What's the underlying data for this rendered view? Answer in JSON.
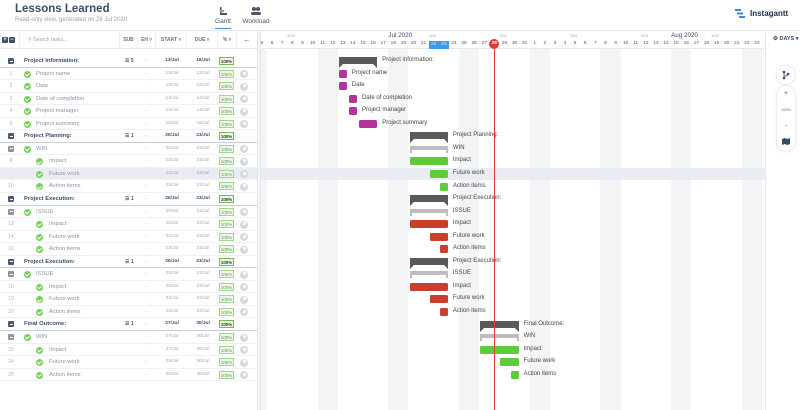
{
  "header": {
    "title": "Lessons Learned",
    "subtitle": "Read-only view, generated on 28 Jul 2020",
    "tabs": [
      {
        "label": "Gantt",
        "icon": "gantt-icon",
        "active": true
      },
      {
        "label": "Workload",
        "icon": "people-icon",
        "active": false
      }
    ],
    "brand": "Instagantt"
  },
  "grid": {
    "search_placeholder": "Search tasks...",
    "columns": {
      "sub": "SUB",
      "eh": "EH ▿",
      "start": "START ▿",
      "due": "DUE ▿",
      "pct": "% ▿",
      "back": "←"
    },
    "rows": [
      {
        "num": "",
        "type": "group",
        "name": "Project information:",
        "sub": "☰ 5",
        "eh": "-",
        "start": "13/Jul",
        "due": "16/Jul",
        "pct": "100%"
      },
      {
        "num": "1",
        "type": "task",
        "level": 1,
        "name": "Project name",
        "eh": "-",
        "start": "13/Jul",
        "due": "13/Jul",
        "pct": "100%"
      },
      {
        "num": "2",
        "type": "task",
        "level": 1,
        "name": "Date",
        "eh": "-",
        "start": "13/Jul",
        "due": "13/Jul",
        "pct": "100%"
      },
      {
        "num": "3",
        "type": "task",
        "level": 1,
        "name": "Date of completion",
        "eh": "-",
        "start": "14/Jul",
        "due": "14/Jul",
        "pct": "100%"
      },
      {
        "num": "4",
        "type": "task",
        "level": 1,
        "name": "Project manager",
        "eh": "-",
        "start": "14/Jul",
        "due": "14/Jul",
        "pct": "100%"
      },
      {
        "num": "5",
        "type": "task",
        "level": 1,
        "name": "Project summary",
        "eh": "-",
        "start": "15/Jul",
        "due": "16/Jul",
        "pct": "100%"
      },
      {
        "num": "",
        "type": "group",
        "name": "Project Planning:",
        "sub": "☰ 1",
        "eh": "-",
        "start": "20/Jul",
        "due": "23/Jul",
        "pct": "100%"
      },
      {
        "num": "",
        "type": "sub",
        "level": 1,
        "name": "WIN",
        "eh": "-",
        "start": "20/Jul",
        "due": "23/Jul",
        "pct": "100%"
      },
      {
        "num": "8",
        "type": "task",
        "level": 2,
        "name": "Impact",
        "eh": "-",
        "start": "20/Jul",
        "due": "23/Jul",
        "pct": "100%"
      },
      {
        "num": "",
        "type": "task",
        "level": 2,
        "name": "Future work",
        "eh": "-",
        "start": "22/Jul",
        "due": "23/Jul",
        "pct": "100%",
        "highlight": true
      },
      {
        "num": "10",
        "type": "task",
        "level": 2,
        "name": "Action items",
        "eh": "-",
        "start": "23/Jul",
        "due": "23/Jul",
        "pct": "100%"
      },
      {
        "num": "",
        "type": "group",
        "name": "Project Execution:",
        "sub": "☰ 1",
        "eh": "-",
        "start": "20/Jul",
        "due": "23/Jul",
        "pct": "100%"
      },
      {
        "num": "",
        "type": "sub",
        "level": 1,
        "name": "ISSUE",
        "eh": "-",
        "start": "20/Jul",
        "due": "23/Jul",
        "pct": "100%"
      },
      {
        "num": "13",
        "type": "task",
        "level": 2,
        "name": "Impact",
        "eh": "-",
        "start": "20/Jul",
        "due": "23/Jul",
        "pct": "100%"
      },
      {
        "num": "14",
        "type": "task",
        "level": 2,
        "name": "Future work",
        "eh": "-",
        "start": "22/Jul",
        "due": "23/Jul",
        "pct": "100%"
      },
      {
        "num": "15",
        "type": "task",
        "level": 2,
        "name": "Action items",
        "eh": "-",
        "start": "23/Jul",
        "due": "23/Jul",
        "pct": "100%"
      },
      {
        "num": "",
        "type": "group",
        "name": "Project Execution:",
        "sub": "☰ 1",
        "eh": "-",
        "start": "20/Jul",
        "due": "23/Jul",
        "pct": "100%"
      },
      {
        "num": "",
        "type": "sub",
        "level": 1,
        "name": "ISSUE",
        "eh": "-",
        "start": "20/Jul",
        "due": "23/Jul",
        "pct": "100%"
      },
      {
        "num": "18",
        "type": "task",
        "level": 2,
        "name": "Impact",
        "eh": "-",
        "start": "20/Jul",
        "due": "23/Jul",
        "pct": "100%"
      },
      {
        "num": "19",
        "type": "task",
        "level": 2,
        "name": "Future work",
        "eh": "-",
        "start": "22/Jul",
        "due": "23/Jul",
        "pct": "100%"
      },
      {
        "num": "20",
        "type": "task",
        "level": 2,
        "name": "Action items",
        "eh": "-",
        "start": "23/Jul",
        "due": "23/Jul",
        "pct": "100%"
      },
      {
        "num": "",
        "type": "group",
        "name": "Final Outcome:",
        "sub": "☰ 1",
        "eh": "-",
        "start": "27/Jul",
        "due": "30/Jul",
        "pct": "100%"
      },
      {
        "num": "",
        "type": "sub",
        "level": 1,
        "name": "WIN",
        "eh": "-",
        "start": "27/Jul",
        "due": "30/Jul",
        "pct": "100%"
      },
      {
        "num": "23",
        "type": "task",
        "level": 2,
        "name": "Impact",
        "eh": "-",
        "start": "27/Jul",
        "due": "30/Jul",
        "pct": "100%"
      },
      {
        "num": "24",
        "type": "task",
        "level": 2,
        "name": "Future work",
        "eh": "-",
        "start": "29/Jul",
        "due": "30/Jul",
        "pct": "100%"
      },
      {
        "num": "25",
        "type": "task",
        "level": 2,
        "name": "Action items",
        "eh": "-",
        "start": "30/Jul",
        "due": "30/Jul",
        "pct": "100%"
      }
    ]
  },
  "timeline": {
    "months": [
      {
        "label": "Jul 2020",
        "day_index": 13
      },
      {
        "label": "Aug 2020",
        "day_index": 41
      }
    ],
    "weeks": [
      {
        "label": "W28",
        "day_index": 3
      },
      {
        "label": "W30",
        "day_index": 17
      },
      {
        "label": "W31",
        "day_index": 24
      },
      {
        "label": "W32",
        "day_index": 31
      },
      {
        "label": "W33",
        "day_index": 38
      },
      {
        "label": "W34",
        "day_index": 45
      }
    ],
    "days": [
      "5",
      "6",
      "7",
      "8",
      "9",
      "10",
      "11",
      "12",
      "13",
      "14",
      "15",
      "16",
      "17",
      "18",
      "19",
      "20",
      "21",
      "22",
      "23",
      "24",
      "25",
      "26",
      "27",
      "28",
      "29",
      "30",
      "31",
      "1",
      "2",
      "3",
      "4",
      "5",
      "6",
      "7",
      "8",
      "9",
      "10",
      "11",
      "12",
      "13",
      "14",
      "15",
      "16",
      "17",
      "18",
      "19",
      "20",
      "21",
      "22",
      "23",
      "24"
    ],
    "selected_days": [
      17,
      18
    ],
    "today_index": 23,
    "today_label": "28",
    "colors": {
      "info": "#b5339c",
      "planning": "#5ecb3b",
      "execution": "#cc3d2a",
      "outcome": "#5ecb3b",
      "today": "#e03a32"
    },
    "bars": [
      {
        "row": 0,
        "type": "group",
        "start": 8,
        "end": 11,
        "label": "Project information:"
      },
      {
        "row": 1,
        "type": "task",
        "start": 8,
        "end": 8,
        "color": "info",
        "label": "Project name"
      },
      {
        "row": 2,
        "type": "task",
        "start": 8,
        "end": 8,
        "color": "info",
        "label": "Date"
      },
      {
        "row": 3,
        "type": "task",
        "start": 9,
        "end": 9,
        "color": "info",
        "label": "Date of completion"
      },
      {
        "row": 4,
        "type": "task",
        "start": 9,
        "end": 9,
        "color": "info",
        "label": "Project manager"
      },
      {
        "row": 5,
        "type": "task",
        "start": 10,
        "end": 11,
        "color": "info",
        "label": "Project summary"
      },
      {
        "row": 6,
        "type": "group",
        "start": 15,
        "end": 18,
        "label": "Project Planning:"
      },
      {
        "row": 7,
        "type": "sub",
        "start": 15,
        "end": 18,
        "label": "WIN"
      },
      {
        "row": 8,
        "type": "task",
        "start": 15,
        "end": 18,
        "color": "planning",
        "label": "Impact"
      },
      {
        "row": 9,
        "type": "task",
        "start": 17,
        "end": 18,
        "color": "planning",
        "label": "Future work"
      },
      {
        "row": 10,
        "type": "task",
        "start": 18,
        "end": 18,
        "color": "planning",
        "label": "Action items"
      },
      {
        "row": 11,
        "type": "group",
        "start": 15,
        "end": 18,
        "label": "Project Execution:"
      },
      {
        "row": 12,
        "type": "sub",
        "start": 15,
        "end": 18,
        "label": "ISSUE"
      },
      {
        "row": 13,
        "type": "task",
        "start": 15,
        "end": 18,
        "color": "execution",
        "label": "Impact"
      },
      {
        "row": 14,
        "type": "task",
        "start": 17,
        "end": 18,
        "color": "execution",
        "label": "Future work"
      },
      {
        "row": 15,
        "type": "task",
        "start": 18,
        "end": 18,
        "color": "execution",
        "label": "Action items"
      },
      {
        "row": 16,
        "type": "group",
        "start": 15,
        "end": 18,
        "label": "Project Execution:"
      },
      {
        "row": 17,
        "type": "sub",
        "start": 15,
        "end": 18,
        "label": "ISSUE"
      },
      {
        "row": 18,
        "type": "task",
        "start": 15,
        "end": 18,
        "color": "execution",
        "label": "Impact"
      },
      {
        "row": 19,
        "type": "task",
        "start": 17,
        "end": 18,
        "color": "execution",
        "label": "Future work"
      },
      {
        "row": 20,
        "type": "task",
        "start": 18,
        "end": 18,
        "color": "execution",
        "label": "Action items"
      },
      {
        "row": 21,
        "type": "group",
        "start": 22,
        "end": 25,
        "label": "Final Outcome:"
      },
      {
        "row": 22,
        "type": "sub",
        "start": 22,
        "end": 25,
        "label": "WIN"
      },
      {
        "row": 23,
        "type": "task",
        "start": 22,
        "end": 25,
        "color": "outcome",
        "label": "Impact"
      },
      {
        "row": 24,
        "type": "task",
        "start": 24,
        "end": 25,
        "color": "outcome",
        "label": "Future work"
      },
      {
        "row": 25,
        "type": "task",
        "start": 25,
        "end": 25,
        "color": "outcome",
        "label": "Action items"
      }
    ]
  },
  "rightbar": {
    "view_label": "DAYS ▾",
    "zoom_in": "+",
    "zoom_level": "100%",
    "zoom_out": "-"
  }
}
